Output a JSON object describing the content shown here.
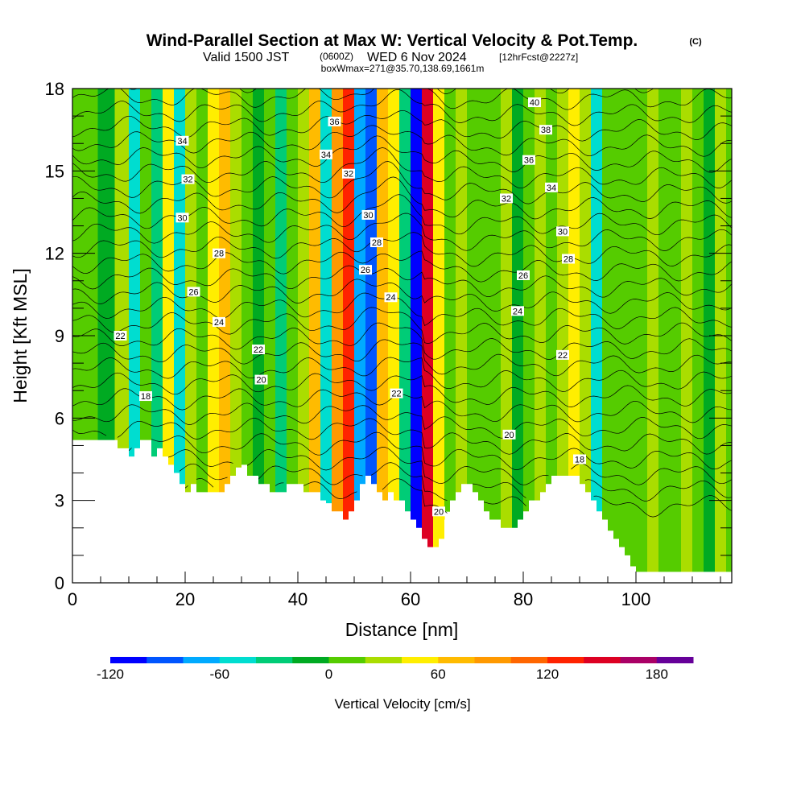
{
  "header": {
    "title": "Wind-Parallel Section at Max W: Vertical Velocity & Pot.Temp.",
    "copyright": "(C)",
    "valid_prefix": "Valid 1500 JST",
    "valid_utc": "(0600Z)",
    "valid_date": "WED 6 Nov 2024",
    "forecast": "[12hrFcst@2227z]",
    "box_info": "boxWmax=271@35.70,138.69,1661m"
  },
  "chart_data": {
    "type": "heatmap",
    "title": "Wind-Parallel Section at Max W: Vertical Velocity & Pot.Temp.",
    "xlabel": "Distance [nm]",
    "ylabel": "Height [Kft MSL]",
    "xlim": [
      0,
      117
    ],
    "ylim": [
      0,
      18
    ],
    "x_ticks": [
      "0",
      "20",
      "40",
      "60",
      "80",
      "100"
    ],
    "y_ticks": [
      "0",
      "3",
      "6",
      "9",
      "12",
      "15",
      "18"
    ],
    "grid": false,
    "colorbar": {
      "label": "Vertical Velocity [cm/s]",
      "placement": "bottom",
      "range": [
        -120,
        200
      ],
      "ticks": [
        "-120",
        "-60",
        "0",
        "60",
        "120",
        "180"
      ],
      "colors": [
        "#0000ff",
        "#0055ff",
        "#00aaff",
        "#00ddd0",
        "#00cc77",
        "#00aa22",
        "#55cc00",
        "#aadd00",
        "#ffee00",
        "#ffbb00",
        "#ff9900",
        "#ff6600",
        "#ff2200",
        "#dd0022",
        "#aa0066",
        "#660099"
      ]
    },
    "terrain_kft": [
      [
        0,
        5.2
      ],
      [
        7,
        5.2
      ],
      [
        8,
        4.9
      ],
      [
        9,
        4.9
      ],
      [
        10,
        4.6
      ],
      [
        11,
        4.9
      ],
      [
        12,
        5.2
      ],
      [
        13,
        5.2
      ],
      [
        14,
        4.6
      ],
      [
        15,
        4.9
      ],
      [
        16,
        4.6
      ],
      [
        17,
        4.3
      ],
      [
        18,
        4.0
      ],
      [
        19,
        3.6
      ],
      [
        20,
        3.3
      ],
      [
        21,
        3.6
      ],
      [
        22,
        3.3
      ],
      [
        24,
        3.3
      ],
      [
        26,
        3.3
      ],
      [
        27,
        3.6
      ],
      [
        28,
        3.9
      ],
      [
        29,
        4.2
      ],
      [
        30,
        4.3
      ],
      [
        31,
        3.9
      ],
      [
        32,
        3.9
      ],
      [
        33,
        3.6
      ],
      [
        34,
        3.6
      ],
      [
        35,
        3.3
      ],
      [
        37,
        3.3
      ],
      [
        38,
        3.6
      ],
      [
        39,
        3.6
      ],
      [
        40,
        3.6
      ],
      [
        41,
        3.3
      ],
      [
        43,
        3.3
      ],
      [
        44,
        3.0
      ],
      [
        45,
        2.9
      ],
      [
        46,
        2.6
      ],
      [
        47,
        2.6
      ],
      [
        48,
        2.3
      ],
      [
        49,
        2.6
      ],
      [
        50,
        3.0
      ],
      [
        51,
        3.6
      ],
      [
        52,
        3.9
      ],
      [
        53,
        3.6
      ],
      [
        54,
        3.3
      ],
      [
        55,
        3.0
      ],
      [
        56,
        3.3
      ],
      [
        57,
        3.0
      ],
      [
        58,
        3.0
      ],
      [
        59,
        2.6
      ],
      [
        60,
        2.3
      ],
      [
        61,
        2.0
      ],
      [
        62,
        1.6
      ],
      [
        63,
        1.3
      ],
      [
        64,
        1.3
      ],
      [
        65,
        1.6
      ],
      [
        66,
        2.3
      ],
      [
        67,
        3.0
      ],
      [
        68,
        3.3
      ],
      [
        69,
        3.6
      ],
      [
        70,
        3.6
      ],
      [
        71,
        3.3
      ],
      [
        72,
        3.0
      ],
      [
        73,
        2.6
      ],
      [
        74,
        2.3
      ],
      [
        75,
        2.3
      ],
      [
        76,
        2.0
      ],
      [
        77,
        2.0
      ],
      [
        78,
        2.0
      ],
      [
        79,
        2.3
      ],
      [
        80,
        2.6
      ],
      [
        81,
        3.0
      ],
      [
        82,
        3.0
      ],
      [
        83,
        3.3
      ],
      [
        84,
        3.6
      ],
      [
        85,
        3.9
      ],
      [
        86,
        3.9
      ],
      [
        88,
        3.9
      ],
      [
        89,
        3.9
      ],
      [
        90,
        3.6
      ],
      [
        91,
        3.3
      ],
      [
        92,
        3.0
      ],
      [
        93,
        2.6
      ],
      [
        94,
        2.3
      ],
      [
        95,
        1.9
      ],
      [
        96,
        1.6
      ],
      [
        97,
        1.3
      ],
      [
        98,
        1.0
      ],
      [
        99,
        0.6
      ],
      [
        100,
        0.4
      ],
      [
        117,
        0.4
      ]
    ],
    "vertical_velocity_cm_s": [
      {
        "x": 3,
        "h0": 5.2,
        "h1": 18,
        "w": 5
      },
      {
        "x": 6,
        "h0": 5.2,
        "h1": 18,
        "w": -10
      },
      {
        "x": 9,
        "h0": 5.0,
        "h1": 18,
        "w": 30
      },
      {
        "x": 11,
        "h0": 5.0,
        "h1": 18,
        "w": -50
      },
      {
        "x": 13,
        "h0": 5.0,
        "h1": 18,
        "w": 10
      },
      {
        "x": 15,
        "h0": 4.6,
        "h1": 18,
        "w": -40
      },
      {
        "x": 17,
        "h0": 4.3,
        "h1": 18,
        "w": 45
      },
      {
        "x": 19,
        "h0": 3.6,
        "h1": 18,
        "w": -60
      },
      {
        "x": 21,
        "h0": 3.5,
        "h1": 18,
        "w": 30
      },
      {
        "x": 23,
        "h0": 3.3,
        "h1": 18,
        "w": 0
      },
      {
        "x": 25,
        "h0": 3.3,
        "h1": 18,
        "w": 45
      },
      {
        "x": 27,
        "h0": 3.6,
        "h1": 18,
        "w": 60
      },
      {
        "x": 29,
        "h0": 4.2,
        "h1": 18,
        "w": 20
      },
      {
        "x": 31,
        "h0": 3.9,
        "h1": 18,
        "w": 0
      },
      {
        "x": 33,
        "h0": 3.6,
        "h1": 18,
        "w": -20
      },
      {
        "x": 35,
        "h0": 3.3,
        "h1": 18,
        "w": 10
      },
      {
        "x": 37,
        "h0": 3.3,
        "h1": 18,
        "w": -30
      },
      {
        "x": 39,
        "h0": 3.6,
        "h1": 18,
        "w": 0
      },
      {
        "x": 41,
        "h0": 3.3,
        "h1": 18,
        "w": 30
      },
      {
        "x": 43,
        "h0": 3.1,
        "h1": 18,
        "w": 70
      },
      {
        "x": 45,
        "h0": 2.8,
        "h1": 18,
        "w": -60
      },
      {
        "x": 47,
        "h0": 2.6,
        "h1": 18,
        "w": 90
      },
      {
        "x": 49,
        "h0": 2.4,
        "h1": 18,
        "w": 130
      },
      {
        "x": 51,
        "h0": 3.0,
        "h1": 18,
        "w": -80
      },
      {
        "x": 53,
        "h0": 3.8,
        "h1": 18,
        "w": -100
      },
      {
        "x": 55,
        "h0": 3.2,
        "h1": 18,
        "w": 70
      },
      {
        "x": 57,
        "h0": 3.0,
        "h1": 18,
        "w": 40
      },
      {
        "x": 59,
        "h0": 2.6,
        "h1": 18,
        "w": -40
      },
      {
        "x": 61,
        "h0": 2.0,
        "h1": 18,
        "w": -110
      },
      {
        "x": 63,
        "h0": 1.3,
        "h1": 18,
        "w": 150
      },
      {
        "x": 65,
        "h0": 1.6,
        "h1": 18,
        "w": 40
      },
      {
        "x": 67,
        "h0": 3.0,
        "h1": 18,
        "w": 10
      },
      {
        "x": 69,
        "h0": 3.6,
        "h1": 18,
        "w": 30
      },
      {
        "x": 71,
        "h0": 3.3,
        "h1": 18,
        "w": 0
      },
      {
        "x": 73,
        "h0": 2.6,
        "h1": 18,
        "w": 15
      },
      {
        "x": 75,
        "h0": 2.3,
        "h1": 18,
        "w": 0
      },
      {
        "x": 77,
        "h0": 2.0,
        "h1": 18,
        "w": 20
      },
      {
        "x": 79,
        "h0": 2.3,
        "h1": 18,
        "w": -5
      },
      {
        "x": 81,
        "h0": 3.0,
        "h1": 18,
        "w": 10
      },
      {
        "x": 83,
        "h0": 3.3,
        "h1": 18,
        "w": 25
      },
      {
        "x": 85,
        "h0": 3.9,
        "h1": 18,
        "w": 5
      },
      {
        "x": 87,
        "h0": 3.9,
        "h1": 18,
        "w": 35
      },
      {
        "x": 89,
        "h0": 3.9,
        "h1": 18,
        "w": 50
      },
      {
        "x": 91,
        "h0": 3.3,
        "h1": 18,
        "w": 20
      },
      {
        "x": 93,
        "h0": 2.6,
        "h1": 18,
        "w": -60
      },
      {
        "x": 95,
        "h0": 1.9,
        "h1": 18,
        "w": 10
      },
      {
        "x": 97,
        "h0": 1.3,
        "h1": 18,
        "w": 0
      },
      {
        "x": 99,
        "h0": 0.6,
        "h1": 18,
        "w": 15
      },
      {
        "x": 101,
        "h0": 0.4,
        "h1": 18,
        "w": 0
      },
      {
        "x": 103,
        "h0": 0.4,
        "h1": 18,
        "w": 25
      },
      {
        "x": 105,
        "h0": 0.4,
        "h1": 18,
        "w": 0
      },
      {
        "x": 107,
        "h0": 0.4,
        "h1": 18,
        "w": 10
      },
      {
        "x": 109,
        "h0": 0.4,
        "h1": 18,
        "w": 30
      },
      {
        "x": 111,
        "h0": 0.4,
        "h1": 18,
        "w": 5
      },
      {
        "x": 113,
        "h0": 0.4,
        "h1": 18,
        "w": -5
      },
      {
        "x": 115,
        "h0": 0.4,
        "h1": 18,
        "w": 20
      },
      {
        "x": 117,
        "h0": 0.4,
        "h1": 18,
        "w": 5
      }
    ],
    "potential_temperature_labels": [
      {
        "text": "34",
        "x": 19.5,
        "y": 16.1
      },
      {
        "text": "32",
        "x": 20.5,
        "y": 14.7
      },
      {
        "text": "30",
        "x": 19.5,
        "y": 13.3
      },
      {
        "text": "28",
        "x": 26,
        "y": 12.0
      },
      {
        "text": "26",
        "x": 21.5,
        "y": 10.6
      },
      {
        "text": "24",
        "x": 26,
        "y": 9.5
      },
      {
        "text": "22",
        "x": 8.5,
        "y": 9.0
      },
      {
        "text": "22",
        "x": 33,
        "y": 8.5
      },
      {
        "text": "20",
        "x": 33.5,
        "y": 7.4
      },
      {
        "text": "18",
        "x": 13,
        "y": 6.8
      },
      {
        "text": "36",
        "x": 46.5,
        "y": 16.8
      },
      {
        "text": "34",
        "x": 45,
        "y": 15.6
      },
      {
        "text": "32",
        "x": 49,
        "y": 14.9
      },
      {
        "text": "30",
        "x": 52.5,
        "y": 13.4
      },
      {
        "text": "28",
        "x": 54,
        "y": 12.4
      },
      {
        "text": "26",
        "x": 52,
        "y": 11.4
      },
      {
        "text": "24",
        "x": 56.5,
        "y": 10.4
      },
      {
        "text": "22",
        "x": 57.5,
        "y": 6.9
      },
      {
        "text": "20",
        "x": 65,
        "y": 2.6
      },
      {
        "text": "40",
        "x": 82,
        "y": 17.5
      },
      {
        "text": "38",
        "x": 84,
        "y": 16.5
      },
      {
        "text": "36",
        "x": 81,
        "y": 15.4
      },
      {
        "text": "34",
        "x": 85,
        "y": 14.4
      },
      {
        "text": "32",
        "x": 77,
        "y": 14.0
      },
      {
        "text": "30",
        "x": 87,
        "y": 12.8
      },
      {
        "text": "28",
        "x": 88,
        "y": 11.8
      },
      {
        "text": "26",
        "x": 80,
        "y": 11.2
      },
      {
        "text": "24",
        "x": 79,
        "y": 9.9
      },
      {
        "text": "22",
        "x": 87,
        "y": 8.3
      },
      {
        "text": "20",
        "x": 77.5,
        "y": 5.4
      },
      {
        "text": "18",
        "x": 90,
        "y": 4.5
      }
    ]
  }
}
